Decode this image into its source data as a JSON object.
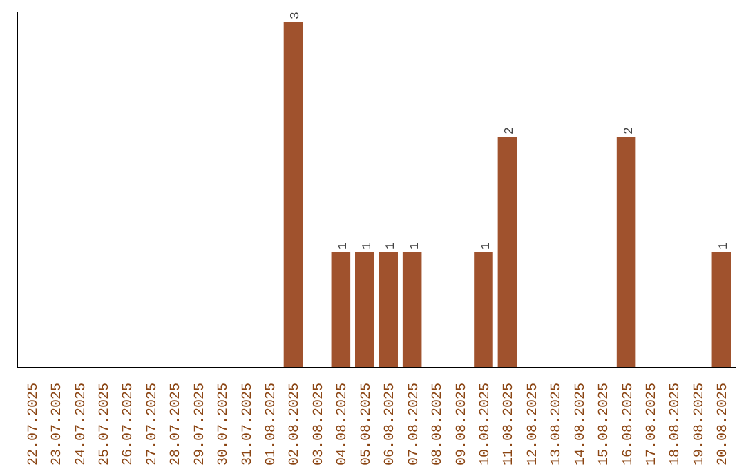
{
  "chart_data": {
    "type": "bar",
    "categories": [
      "22.07.2025",
      "23.07.2025",
      "24.07.2025",
      "25.07.2025",
      "26.07.2025",
      "27.07.2025",
      "28.07.2025",
      "29.07.2025",
      "30.07.2025",
      "31.07.2025",
      "01.08.2025",
      "02.08.2025",
      "03.08.2025",
      "04.08.2025",
      "05.08.2025",
      "06.08.2025",
      "07.08.2025",
      "08.08.2025",
      "09.08.2025",
      "10.08.2025",
      "11.08.2025",
      "12.08.2025",
      "13.08.2025",
      "14.08.2025",
      "15.08.2025",
      "16.08.2025",
      "17.08.2025",
      "18.08.2025",
      "19.08.2025",
      "20.08.2025"
    ],
    "values": [
      0,
      0,
      0,
      0,
      0,
      0,
      0,
      0,
      0,
      0,
      0,
      3,
      0,
      1,
      1,
      1,
      1,
      0,
      0,
      1,
      2,
      0,
      0,
      0,
      0,
      2,
      0,
      0,
      0,
      1
    ],
    "value_labels": [
      null,
      null,
      null,
      null,
      null,
      null,
      null,
      null,
      null,
      null,
      null,
      "3",
      null,
      "1",
      "1",
      "1",
      "1",
      null,
      null,
      "1",
      "2",
      null,
      null,
      null,
      null,
      "2",
      null,
      null,
      null,
      "1"
    ],
    "color": "#a0522d",
    "grid": false,
    "tick_labels": "x"
  }
}
